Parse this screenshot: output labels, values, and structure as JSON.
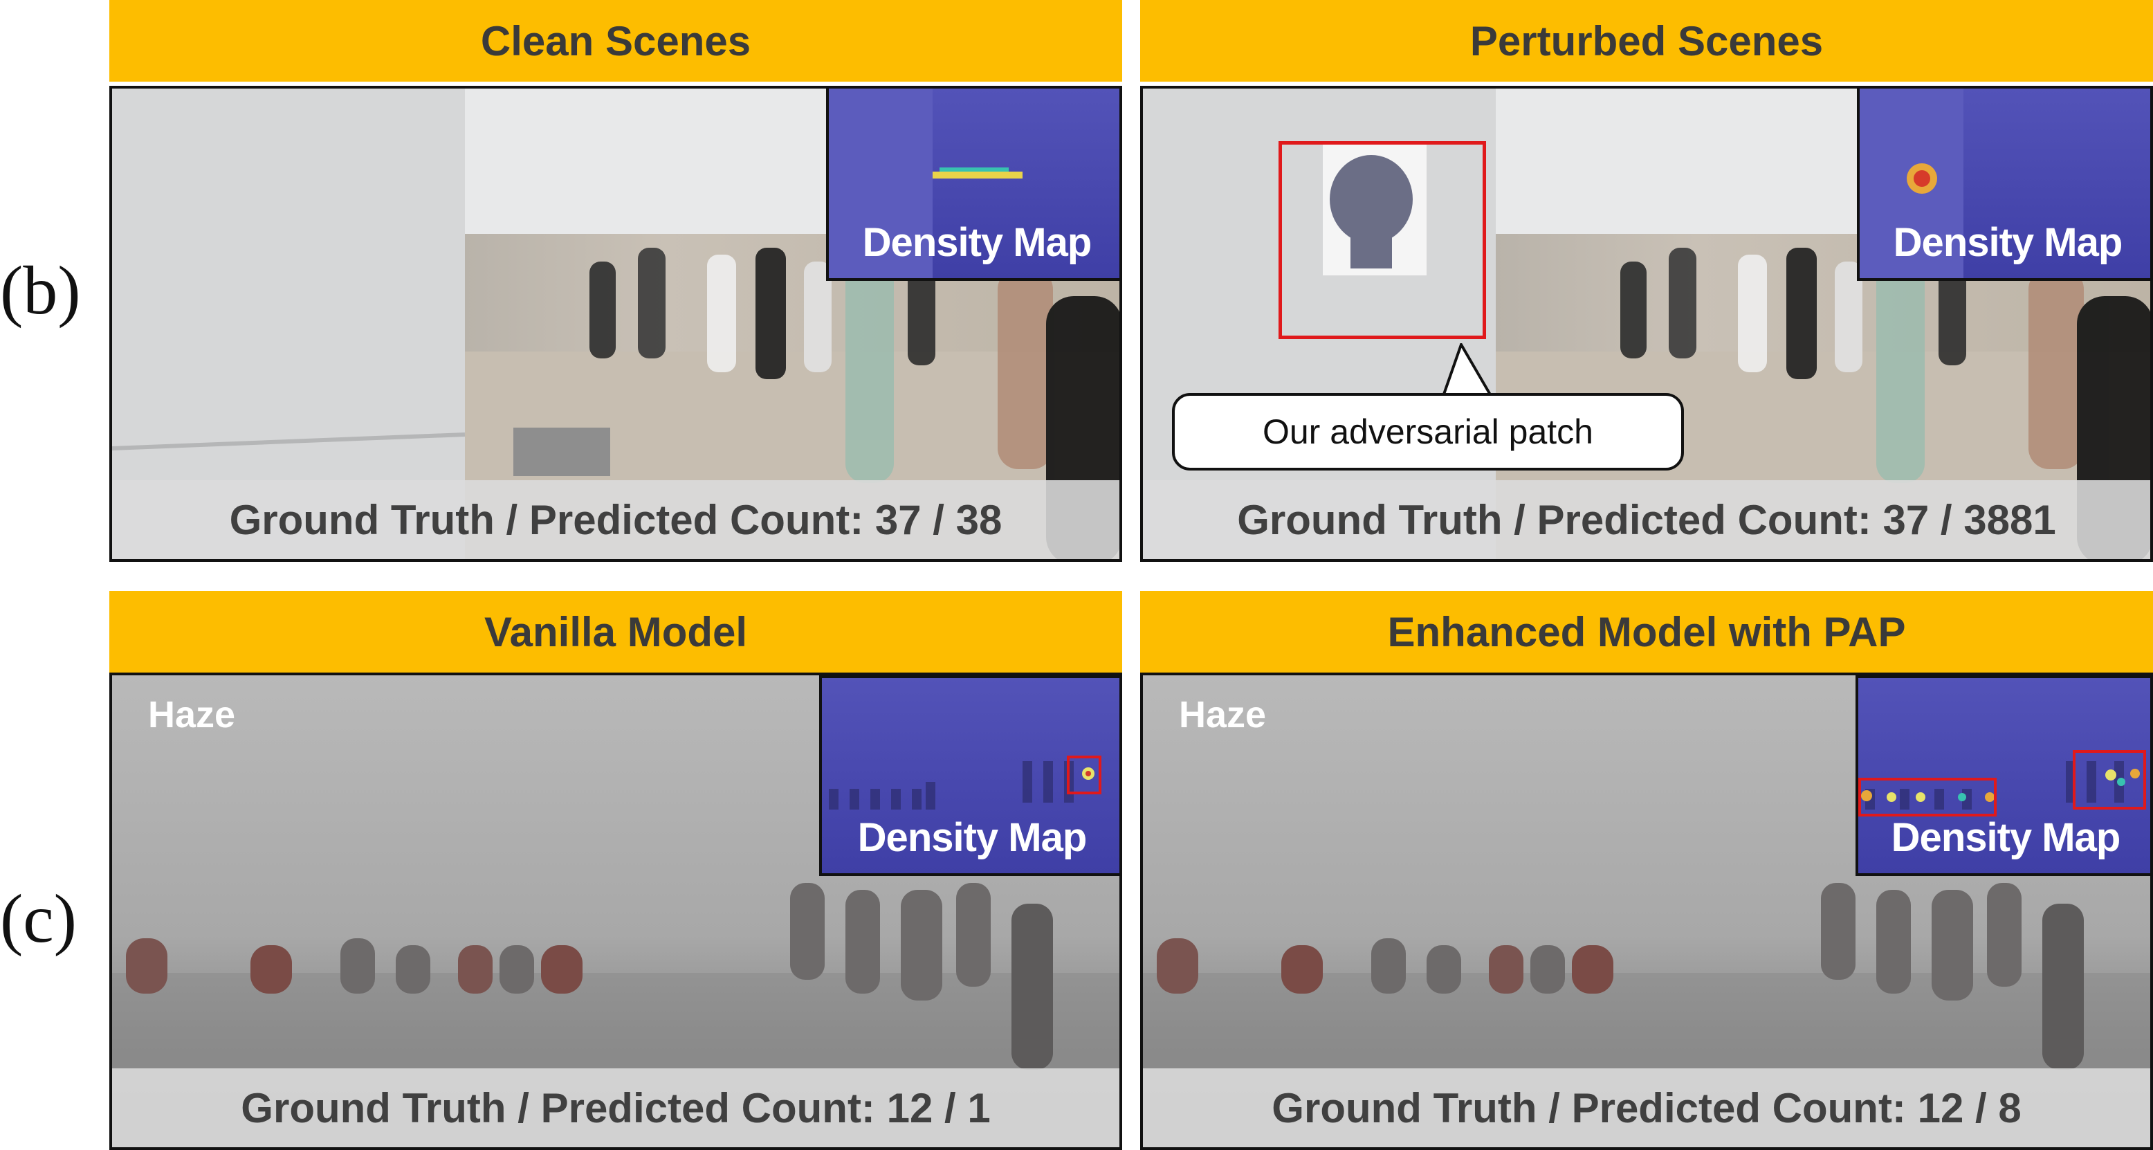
{
  "row_b_label": "(b)",
  "row_c_label": "(c)",
  "panels": {
    "clean": {
      "title": "Clean Scenes",
      "inset_label": "Density Map",
      "footer": "Ground Truth / Predicted Count: 37 / 38"
    },
    "perturbed": {
      "title": "Perturbed Scenes",
      "inset_label": "Density Map",
      "callout": "Our adversarial patch",
      "footer": "Ground Truth / Predicted Count: 37 / 3881"
    },
    "vanilla": {
      "title": "Vanilla Model",
      "weather": "Haze",
      "inset_label": "Density Map",
      "footer": "Ground Truth / Predicted Count: 12 / 1"
    },
    "enhanced": {
      "title": "Enhanced Model with PAP",
      "weather": "Haze",
      "inset_label": "Density Map",
      "footer": "Ground Truth / Predicted Count: 12 / 8"
    }
  },
  "colors": {
    "header_bg": "#FDBD00",
    "highlight_box": "#e0191b",
    "density_map_bg": "#3f3fa6"
  }
}
